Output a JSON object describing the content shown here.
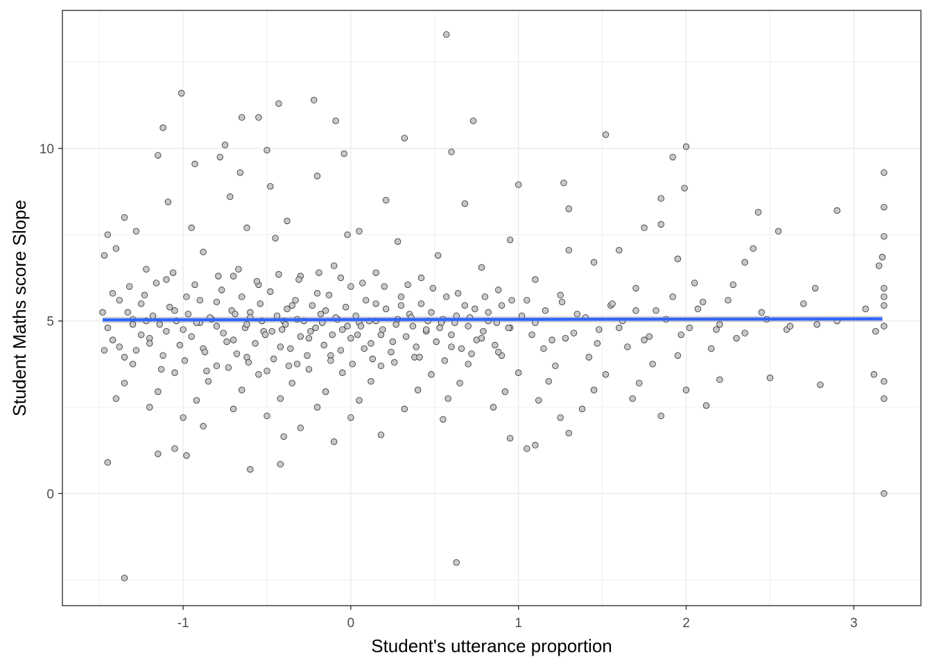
{
  "chart_data": {
    "type": "scatter",
    "title": "",
    "xlabel": "Student's utterance proportion",
    "ylabel": "Student Maths score Slope",
    "xlim": [
      -1.72,
      3.4
    ],
    "ylim": [
      -3.25,
      14.0
    ],
    "x_ticks": [
      -1,
      0,
      1,
      2,
      3
    ],
    "x_tick_labels": [
      "-1",
      "0",
      "1",
      "2",
      "3"
    ],
    "y_ticks": [
      0,
      5,
      10
    ],
    "y_tick_labels": [
      "0",
      "5",
      "10"
    ],
    "grid": true,
    "legend": "none",
    "colors": {
      "point_fill": "#c8c8c8",
      "point_stroke": "#2b2b2b",
      "fit_line": "#3366ff",
      "fit_band": "#b3b3b3",
      "grid": "#ebebeb",
      "panel_border": "#333333",
      "tick_text": "#4d4d4d"
    },
    "fit_line": {
      "method": "lm",
      "x": [
        -1.48,
        3.17
      ],
      "y": [
        5.03,
        5.06
      ],
      "se_band": 0.09
    },
    "points": [
      [
        0.57,
        13.3
      ],
      [
        -1.01,
        11.6
      ],
      [
        -0.43,
        11.3
      ],
      [
        -0.22,
        11.4
      ],
      [
        -1.12,
        10.6
      ],
      [
        -0.65,
        10.9
      ],
      [
        -0.55,
        10.9
      ],
      [
        -0.09,
        10.8
      ],
      [
        0.73,
        10.8
      ],
      [
        1.52,
        10.4
      ],
      [
        0.32,
        10.3
      ],
      [
        -0.75,
        10.1
      ],
      [
        -0.5,
        9.95
      ],
      [
        2.0,
        10.05
      ],
      [
        -0.04,
        9.85
      ],
      [
        0.6,
        9.9
      ],
      [
        -1.15,
        9.8
      ],
      [
        -0.78,
        9.75
      ],
      [
        1.92,
        9.75
      ],
      [
        -0.93,
        9.55
      ],
      [
        -0.66,
        9.3
      ],
      [
        -0.2,
        9.2
      ],
      [
        3.18,
        9.3
      ],
      [
        1.0,
        8.95
      ],
      [
        1.27,
        9.0
      ],
      [
        -0.48,
        8.9
      ],
      [
        1.99,
        8.85
      ],
      [
        -0.72,
        8.6
      ],
      [
        1.85,
        8.55
      ],
      [
        2.9,
        8.2
      ],
      [
        -1.09,
        8.45
      ],
      [
        0.21,
        8.5
      ],
      [
        0.68,
        8.4
      ],
      [
        -0.38,
        7.9
      ],
      [
        2.43,
        8.15
      ],
      [
        3.18,
        8.3
      ],
      [
        -1.35,
        8.0
      ],
      [
        -0.95,
        7.7
      ],
      [
        1.3,
        8.25
      ],
      [
        -0.62,
        7.7
      ],
      [
        0.05,
        7.6
      ],
      [
        1.75,
        7.7
      ],
      [
        2.55,
        7.6
      ],
      [
        -1.45,
        7.5
      ],
      [
        -0.02,
        7.5
      ],
      [
        0.95,
        7.35
      ],
      [
        1.85,
        7.8
      ],
      [
        3.18,
        7.45
      ],
      [
        -1.28,
        7.6
      ],
      [
        -0.45,
        7.4
      ],
      [
        0.28,
        7.3
      ],
      [
        1.6,
        7.05
      ],
      [
        2.4,
        7.1
      ],
      [
        -1.4,
        7.1
      ],
      [
        -0.88,
        7.0
      ],
      [
        0.52,
        6.9
      ],
      [
        1.3,
        7.05
      ],
      [
        3.17,
        6.85
      ],
      [
        -1.47,
        6.9
      ],
      [
        -0.1,
        6.6
      ],
      [
        0.78,
        6.55
      ],
      [
        1.95,
        6.8
      ],
      [
        -1.22,
        6.5
      ],
      [
        -0.3,
        6.3
      ],
      [
        0.15,
        6.4
      ],
      [
        1.45,
        6.7
      ],
      [
        2.35,
        6.7
      ],
      [
        -1.1,
        6.2
      ],
      [
        -0.7,
        6.3
      ],
      [
        0.42,
        6.25
      ],
      [
        1.1,
        6.2
      ],
      [
        2.05,
        6.1
      ],
      [
        3.15,
        6.6
      ],
      [
        -1.32,
        6.0
      ],
      [
        -0.55,
        6.05
      ],
      [
        0.0,
        6.0
      ],
      [
        0.88,
        5.9
      ],
      [
        1.7,
        5.95
      ],
      [
        2.28,
        6.05
      ],
      [
        2.77,
        5.95
      ],
      [
        -1.42,
        5.8
      ],
      [
        -0.98,
        5.7
      ],
      [
        -0.2,
        5.8
      ],
      [
        0.3,
        5.7
      ],
      [
        1.25,
        5.75
      ],
      [
        1.92,
        5.7
      ],
      [
        3.18,
        5.95
      ],
      [
        -1.25,
        5.5
      ],
      [
        -0.8,
        5.55
      ],
      [
        -0.35,
        5.45
      ],
      [
        0.15,
        5.5
      ],
      [
        0.68,
        5.45
      ],
      [
        1.05,
        5.6
      ],
      [
        1.55,
        5.45
      ],
      [
        2.1,
        5.55
      ],
      [
        2.7,
        5.5
      ],
      [
        3.18,
        5.7
      ],
      [
        -1.48,
        5.25
      ],
      [
        -1.05,
        5.3
      ],
      [
        -0.6,
        5.25
      ],
      [
        -0.15,
        5.3
      ],
      [
        0.35,
        5.2
      ],
      [
        0.82,
        5.25
      ],
      [
        1.35,
        5.2
      ],
      [
        1.82,
        5.3
      ],
      [
        2.45,
        5.25
      ],
      [
        3.07,
        5.35
      ],
      [
        -1.3,
        5.05
      ],
      [
        -0.9,
        4.95
      ],
      [
        -0.4,
        5.0
      ],
      [
        0.05,
        4.95
      ],
      [
        0.55,
        5.05
      ],
      [
        1.1,
        4.95
      ],
      [
        1.62,
        5.0
      ],
      [
        2.2,
        4.9
      ],
      [
        2.78,
        4.9
      ],
      [
        3.18,
        4.85
      ],
      [
        -1.45,
        4.8
      ],
      [
        -1.0,
        4.75
      ],
      [
        -0.52,
        4.7
      ],
      [
        -0.05,
        4.75
      ],
      [
        0.45,
        4.7
      ],
      [
        0.95,
        4.8
      ],
      [
        1.48,
        4.75
      ],
      [
        2.02,
        4.8
      ],
      [
        2.6,
        4.75
      ],
      [
        3.13,
        4.7
      ],
      [
        -1.2,
        4.5
      ],
      [
        -0.7,
        4.45
      ],
      [
        -0.25,
        4.5
      ],
      [
        0.25,
        4.4
      ],
      [
        0.75,
        4.45
      ],
      [
        1.28,
        4.5
      ],
      [
        1.75,
        4.45
      ],
      [
        2.3,
        4.5
      ],
      [
        -1.38,
        4.25
      ],
      [
        -0.88,
        4.2
      ],
      [
        -0.42,
        4.25
      ],
      [
        0.08,
        4.2
      ],
      [
        0.6,
        4.25
      ],
      [
        1.15,
        4.2
      ],
      [
        1.65,
        4.25
      ],
      [
        2.15,
        4.2
      ],
      [
        -1.12,
        4.0
      ],
      [
        -0.62,
        3.95
      ],
      [
        -0.12,
        4.0
      ],
      [
        0.38,
        3.95
      ],
      [
        0.9,
        4.0
      ],
      [
        1.42,
        3.95
      ],
      [
        1.95,
        4.0
      ],
      [
        -1.47,
        4.15
      ],
      [
        -1.3,
        3.75
      ],
      [
        -0.8,
        3.7
      ],
      [
        -0.32,
        3.75
      ],
      [
        0.18,
        3.7
      ],
      [
        0.7,
        3.75
      ],
      [
        1.22,
        3.7
      ],
      [
        1.8,
        3.75
      ],
      [
        -1.05,
        3.5
      ],
      [
        -0.55,
        3.45
      ],
      [
        -0.05,
        3.5
      ],
      [
        0.48,
        3.45
      ],
      [
        1.0,
        3.5
      ],
      [
        1.52,
        3.45
      ],
      [
        2.5,
        3.35
      ],
      [
        3.12,
        3.45
      ],
      [
        -1.35,
        3.2
      ],
      [
        -0.85,
        3.25
      ],
      [
        -0.35,
        3.2
      ],
      [
        0.12,
        3.25
      ],
      [
        0.65,
        3.2
      ],
      [
        1.18,
        3.25
      ],
      [
        1.72,
        3.2
      ],
      [
        2.2,
        3.3
      ],
      [
        2.8,
        3.15
      ],
      [
        3.18,
        3.25
      ],
      [
        -1.15,
        2.95
      ],
      [
        -0.65,
        3.0
      ],
      [
        -0.15,
        2.95
      ],
      [
        0.4,
        3.0
      ],
      [
        0.92,
        2.95
      ],
      [
        1.45,
        3.0
      ],
      [
        2.0,
        3.0
      ],
      [
        -1.4,
        2.75
      ],
      [
        -0.92,
        2.7
      ],
      [
        -0.42,
        2.75
      ],
      [
        0.05,
        2.7
      ],
      [
        0.58,
        2.75
      ],
      [
        1.12,
        2.7
      ],
      [
        1.68,
        2.75
      ],
      [
        3.18,
        2.75
      ],
      [
        -1.2,
        2.5
      ],
      [
        -0.7,
        2.45
      ],
      [
        -0.2,
        2.5
      ],
      [
        0.32,
        2.45
      ],
      [
        0.85,
        2.5
      ],
      [
        1.38,
        2.45
      ],
      [
        2.12,
        2.55
      ],
      [
        -1.0,
        2.2
      ],
      [
        -0.5,
        2.25
      ],
      [
        0.0,
        2.2
      ],
      [
        0.55,
        2.15
      ],
      [
        1.25,
        2.2
      ],
      [
        1.85,
        2.25
      ],
      [
        -0.88,
        1.95
      ],
      [
        -0.3,
        1.9
      ],
      [
        0.18,
        1.7
      ],
      [
        0.95,
        1.6
      ],
      [
        1.3,
        1.75
      ],
      [
        -0.4,
        1.65
      ],
      [
        -0.1,
        1.5
      ],
      [
        1.1,
        1.4
      ],
      [
        -1.05,
        1.3
      ],
      [
        -1.15,
        1.15
      ],
      [
        -0.98,
        1.1
      ],
      [
        1.05,
        1.3
      ],
      [
        -1.45,
        0.9
      ],
      [
        -0.42,
        0.85
      ],
      [
        -0.6,
        0.7
      ],
      [
        3.18,
        0.0
      ],
      [
        0.63,
        -2.0
      ],
      [
        -1.35,
        -2.45
      ],
      [
        -1.3,
        4.9
      ],
      [
        -1.25,
        4.6
      ],
      [
        -1.18,
        5.15
      ],
      [
        -1.1,
        4.7
      ],
      [
        -1.08,
        5.4
      ],
      [
        -1.02,
        4.3
      ],
      [
        -0.97,
        5.2
      ],
      [
        -0.95,
        4.55
      ],
      [
        -0.9,
        5.6
      ],
      [
        -0.87,
        4.1
      ],
      [
        -0.83,
        5.05
      ],
      [
        -0.8,
        4.85
      ],
      [
        -0.77,
        5.9
      ],
      [
        -0.74,
        4.4
      ],
      [
        -0.71,
        5.3
      ],
      [
        -0.68,
        4.05
      ],
      [
        -0.65,
        5.7
      ],
      [
        -0.63,
        4.8
      ],
      [
        -0.6,
        5.1
      ],
      [
        -0.57,
        4.35
      ],
      [
        -0.54,
        5.5
      ],
      [
        -0.51,
        4.6
      ],
      [
        -0.48,
        5.85
      ],
      [
        -0.46,
        3.9
      ],
      [
        -0.44,
        5.15
      ],
      [
        -0.41,
        4.75
      ],
      [
        -0.38,
        5.35
      ],
      [
        -0.36,
        4.2
      ],
      [
        -0.33,
        5.6
      ],
      [
        -0.3,
        4.55
      ],
      [
        -0.28,
        5.0
      ],
      [
        -0.26,
        4.0
      ],
      [
        -0.23,
        5.45
      ],
      [
        -0.21,
        4.8
      ],
      [
        -0.18,
        5.2
      ],
      [
        -0.16,
        4.3
      ],
      [
        -0.13,
        5.75
      ],
      [
        -0.11,
        4.6
      ],
      [
        -0.08,
        5.05
      ],
      [
        -0.06,
        4.15
      ],
      [
        -0.03,
        5.4
      ],
      [
        0.0,
        4.5
      ],
      [
        0.03,
        5.15
      ],
      [
        0.06,
        4.85
      ],
      [
        0.09,
        5.6
      ],
      [
        0.12,
        4.35
      ],
      [
        0.15,
        5.0
      ],
      [
        0.18,
        4.6
      ],
      [
        0.21,
        5.35
      ],
      [
        0.24,
        4.1
      ],
      [
        0.27,
        4.9
      ],
      [
        0.3,
        5.45
      ],
      [
        0.33,
        4.55
      ],
      [
        0.36,
        5.1
      ],
      [
        0.39,
        4.25
      ],
      [
        0.42,
        5.5
      ],
      [
        0.45,
        4.75
      ],
      [
        0.48,
        5.25
      ],
      [
        0.51,
        4.4
      ],
      [
        0.54,
        4.95
      ],
      [
        0.57,
        5.7
      ],
      [
        0.6,
        4.6
      ],
      [
        0.63,
        5.15
      ],
      [
        0.66,
        4.2
      ],
      [
        0.7,
        4.85
      ],
      [
        0.74,
        5.35
      ],
      [
        0.78,
        4.5
      ],
      [
        0.82,
        5.0
      ],
      [
        0.86,
        4.3
      ],
      [
        0.9,
        5.45
      ],
      [
        -1.42,
        4.45
      ],
      [
        -1.38,
        5.6
      ],
      [
        -1.35,
        3.95
      ],
      [
        -1.33,
        5.25
      ],
      [
        -1.28,
        4.15
      ],
      [
        -1.23,
        5.75
      ],
      [
        -1.2,
        4.35
      ],
      [
        -1.16,
        6.1
      ],
      [
        -1.13,
        3.6
      ],
      [
        -1.06,
        6.4
      ],
      [
        -0.99,
        3.85
      ],
      [
        -0.93,
        6.05
      ],
      [
        -0.86,
        3.55
      ],
      [
        -0.79,
        6.3
      ],
      [
        -0.73,
        3.65
      ],
      [
        -0.67,
        6.5
      ],
      [
        -0.61,
        3.8
      ],
      [
        -0.56,
        6.15
      ],
      [
        -0.5,
        3.55
      ],
      [
        -0.43,
        6.35
      ],
      [
        -0.37,
        3.7
      ],
      [
        -0.31,
        6.2
      ],
      [
        -0.25,
        3.6
      ],
      [
        -0.19,
        6.4
      ],
      [
        -0.12,
        3.85
      ],
      [
        -0.06,
        6.25
      ],
      [
        0.01,
        3.75
      ],
      [
        0.07,
        6.1
      ],
      [
        0.13,
        3.9
      ],
      [
        0.2,
        6.0
      ],
      [
        0.26,
        3.8
      ],
      [
        0.34,
        6.05
      ],
      [
        0.41,
        3.95
      ],
      [
        0.49,
        5.95
      ],
      [
        0.56,
        3.85
      ],
      [
        0.64,
        5.8
      ],
      [
        0.72,
        4.05
      ],
      [
        0.8,
        5.7
      ],
      [
        0.88,
        4.1
      ],
      [
        0.96,
        5.6
      ],
      [
        -1.22,
        5.0
      ],
      [
        -1.14,
        4.9
      ],
      [
        -1.04,
        5.0
      ],
      [
        -0.92,
        4.95
      ],
      [
        -0.84,
        5.1
      ],
      [
        -0.76,
        4.65
      ],
      [
        -0.69,
        5.2
      ],
      [
        -0.62,
        4.9
      ],
      [
        -0.53,
        5.0
      ],
      [
        -0.47,
        4.7
      ],
      [
        -0.39,
        4.9
      ],
      [
        -0.32,
        5.05
      ],
      [
        -0.24,
        4.7
      ],
      [
        -0.17,
        4.95
      ],
      [
        -0.09,
        5.1
      ],
      [
        -0.02,
        4.85
      ],
      [
        0.04,
        4.6
      ],
      [
        0.11,
        5.0
      ],
      [
        0.19,
        4.75
      ],
      [
        0.28,
        5.05
      ],
      [
        0.37,
        4.85
      ],
      [
        0.46,
        5.0
      ],
      [
        0.53,
        4.8
      ],
      [
        0.62,
        4.95
      ],
      [
        0.71,
        5.1
      ],
      [
        0.79,
        4.7
      ],
      [
        0.87,
        4.95
      ],
      [
        0.94,
        4.8
      ],
      [
        1.02,
        5.15
      ],
      [
        1.08,
        4.6
      ],
      [
        1.16,
        5.3
      ],
      [
        1.2,
        4.45
      ],
      [
        1.26,
        5.55
      ],
      [
        1.33,
        4.65
      ],
      [
        1.4,
        5.1
      ],
      [
        1.47,
        4.35
      ],
      [
        1.56,
        5.5
      ],
      [
        1.6,
        4.8
      ],
      [
        1.7,
        5.3
      ],
      [
        1.78,
        4.55
      ],
      [
        1.88,
        5.05
      ],
      [
        1.97,
        4.6
      ],
      [
        2.07,
        5.35
      ],
      [
        2.18,
        4.75
      ],
      [
        2.25,
        5.6
      ],
      [
        2.35,
        4.65
      ],
      [
        2.48,
        5.05
      ],
      [
        2.62,
        4.85
      ],
      [
        2.9,
        5.0
      ],
      [
        3.18,
        5.45
      ]
    ]
  }
}
